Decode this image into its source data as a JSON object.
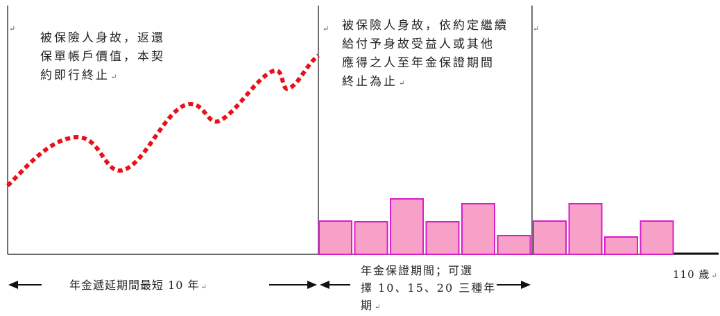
{
  "phase1": {
    "description": "被保險人身故，返還\n保單帳戶價值，本契\n約即行終止",
    "period_label": "年金遞延期間最短 10 年"
  },
  "phase2": {
    "description": "被保險人身故，依約定繼續\n給付予身故受益人或其他\n應得之人至年金保證期間\n終止為止",
    "period_label": "年金保證期間；可選\n擇 10、15、20 三種年\n期"
  },
  "phase3": {
    "end_label": "110 歲"
  },
  "colors": {
    "curve": "#e8101a",
    "bar_fill": "#f7a0c8",
    "bar_stroke": "#d81ec8",
    "line": "#111111"
  },
  "chart_data": {
    "type": "bar",
    "guarantee_bars": [
      0.48,
      0.47,
      0.8,
      0.47,
      0.73,
      0.27
    ],
    "after_bars": [
      0.48,
      0.73,
      0.25,
      0.48
    ]
  }
}
